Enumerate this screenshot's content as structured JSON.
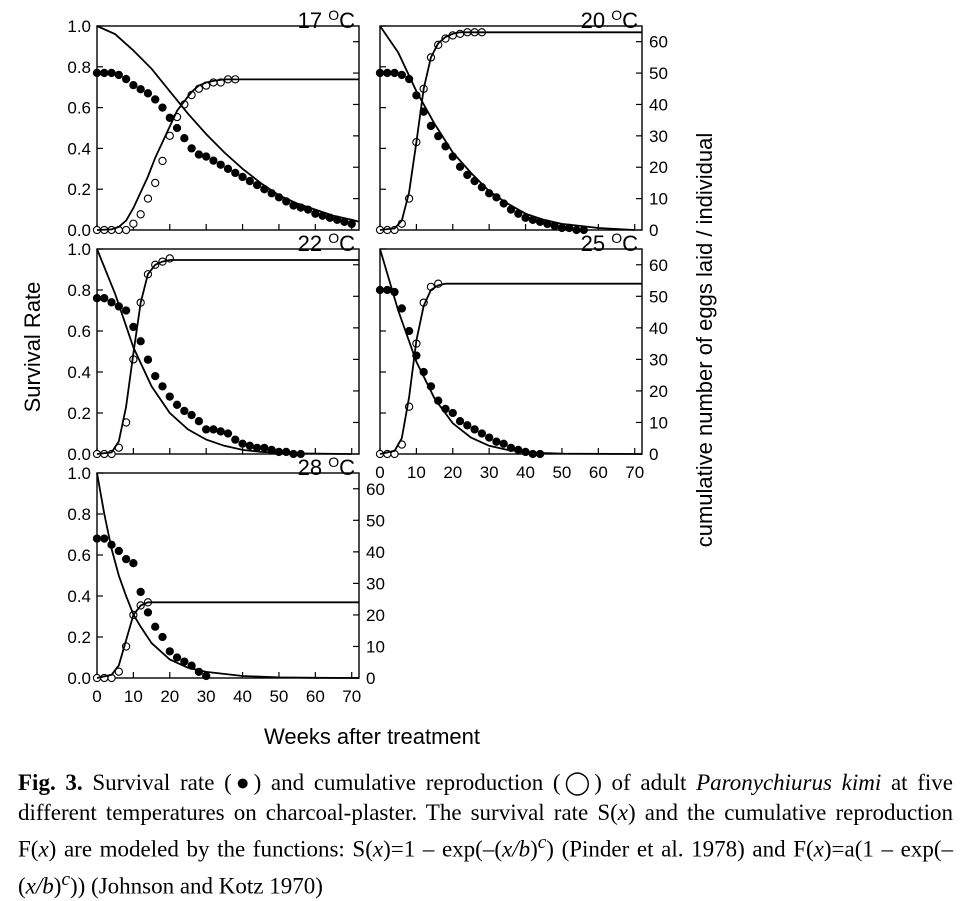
{
  "figure": {
    "shared_x_label": "Weeks after treatment",
    "left_y_label": "Survival Rate",
    "right_y_label": "cumulative number of eggs laid / individual"
  },
  "caption": {
    "label": "Fig. 3.",
    "parts": [
      "Survival rate (",
      "●",
      ") and cumulative reproduction (",
      "◯",
      ") of adult ",
      "Paronychiurus kimi",
      " at five different temperatures on charcoal-plaster. The survival rate S(",
      "x",
      ") and the cumulative reproduction F(",
      "x",
      ") are modeled by the functions: S(",
      "x",
      ")=1 – exp(–(",
      "x/b",
      ")",
      "c",
      ") (Pinder et al. 1978) and F(",
      "x",
      ")=a(1 – exp(–(",
      "x/b",
      ")",
      "c",
      ")) (Johnson and Kotz 1970)"
    ]
  },
  "chart_data": [
    {
      "type": "scatter",
      "title": "17 °C",
      "title_parts": [
        "17 ",
        "O",
        "C"
      ],
      "x_ticks": [],
      "y_left_ticks": [
        "0.0",
        "0.2",
        "0.4",
        "0.6",
        "0.8",
        "1.0"
      ],
      "y_right_ticks": [],
      "xlim": [
        0,
        72
      ],
      "ylim_left": [
        0,
        1
      ],
      "ylim_right": [
        0,
        65
      ],
      "series": [
        {
          "name": "Survival rate",
          "marker": "filled-circle",
          "axis": "left",
          "x": [
            0,
            2,
            4,
            6,
            8,
            10,
            12,
            14,
            16,
            18,
            20,
            22,
            24,
            26,
            28,
            30,
            32,
            34,
            36,
            38,
            40,
            42,
            44,
            46,
            48,
            50,
            52,
            54,
            56,
            58,
            60,
            62,
            64,
            66,
            68,
            70
          ],
          "y": [
            0.77,
            0.77,
            0.77,
            0.76,
            0.74,
            0.71,
            0.69,
            0.67,
            0.64,
            0.6,
            0.55,
            0.5,
            0.45,
            0.4,
            0.37,
            0.36,
            0.34,
            0.32,
            0.3,
            0.28,
            0.26,
            0.24,
            0.22,
            0.2,
            0.18,
            0.16,
            0.14,
            0.12,
            0.11,
            0.1,
            0.08,
            0.07,
            0.06,
            0.05,
            0.04,
            0.03
          ]
        },
        {
          "name": "Cumulative reproduction",
          "marker": "open-circle",
          "axis": "right",
          "x": [
            0,
            2,
            4,
            6,
            8,
            10,
            12,
            14,
            16,
            18,
            20,
            22,
            24,
            26,
            28,
            30,
            32,
            34,
            36,
            38
          ],
          "y": [
            0,
            0,
            0,
            0,
            0,
            2,
            5,
            10,
            15,
            22,
            30,
            36,
            40,
            43,
            45,
            46,
            47,
            47,
            48,
            48
          ]
        },
        {
          "name": "Survival model",
          "style": "line",
          "axis": "left",
          "x": [
            0,
            5,
            10,
            15,
            20,
            25,
            30,
            35,
            40,
            45,
            50,
            55,
            60,
            65,
            70,
            72
          ],
          "y": [
            1.0,
            0.96,
            0.88,
            0.79,
            0.68,
            0.57,
            0.47,
            0.38,
            0.3,
            0.23,
            0.17,
            0.13,
            0.1,
            0.07,
            0.05,
            0.04
          ]
        },
        {
          "name": "Reproduction model",
          "style": "line",
          "axis": "right",
          "x": [
            0,
            4,
            6,
            8,
            10,
            12,
            14,
            16,
            18,
            20,
            22,
            24,
            26,
            28,
            30,
            32,
            35,
            40,
            72
          ],
          "y": [
            0,
            0.2,
            1,
            3,
            7,
            12,
            17,
            23,
            28,
            33,
            38,
            41,
            44,
            46,
            47,
            47.5,
            48,
            48,
            48
          ]
        }
      ]
    },
    {
      "type": "scatter",
      "title": "20 °C",
      "title_parts": [
        "20 ",
        "O",
        "C"
      ],
      "x_ticks": [],
      "y_left_ticks": [],
      "y_right_ticks": [
        "0",
        "10",
        "20",
        "30",
        "40",
        "50",
        "60"
      ],
      "xlim": [
        0,
        72
      ],
      "ylim_left": [
        0,
        1
      ],
      "ylim_right": [
        0,
        65
      ],
      "series": [
        {
          "name": "Survival rate",
          "marker": "filled-circle",
          "axis": "left",
          "x": [
            0,
            2,
            4,
            6,
            8,
            10,
            12,
            14,
            16,
            18,
            20,
            22,
            24,
            26,
            28,
            30,
            32,
            34,
            36,
            38,
            40,
            42,
            44,
            46,
            48,
            50,
            52,
            54,
            56
          ],
          "y": [
            0.77,
            0.77,
            0.77,
            0.76,
            0.74,
            0.66,
            0.58,
            0.51,
            0.46,
            0.41,
            0.36,
            0.31,
            0.27,
            0.24,
            0.21,
            0.18,
            0.16,
            0.13,
            0.1,
            0.08,
            0.06,
            0.05,
            0.04,
            0.03,
            0.02,
            0.01,
            0.01,
            0.0,
            0.0
          ]
        },
        {
          "name": "Cumulative reproduction",
          "marker": "open-circle",
          "axis": "right",
          "x": [
            0,
            2,
            4,
            6,
            8,
            10,
            12,
            14,
            16,
            18,
            20,
            22,
            24,
            26,
            28
          ],
          "y": [
            0,
            0,
            0,
            2,
            10,
            28,
            45,
            55,
            59,
            61,
            62,
            62.5,
            63,
            63,
            63
          ]
        },
        {
          "name": "Survival model",
          "style": "line",
          "axis": "left",
          "x": [
            0,
            5,
            10,
            15,
            20,
            25,
            30,
            35,
            40,
            45,
            50,
            55,
            60,
            65,
            70
          ],
          "y": [
            1.0,
            0.87,
            0.68,
            0.52,
            0.38,
            0.28,
            0.19,
            0.13,
            0.08,
            0.05,
            0.03,
            0.02,
            0.01,
            0.005,
            0.0
          ]
        },
        {
          "name": "Reproduction model",
          "style": "line",
          "axis": "right",
          "x": [
            0,
            4,
            6,
            8,
            10,
            12,
            14,
            16,
            18,
            20,
            22,
            25,
            30,
            72
          ],
          "y": [
            0,
            0.5,
            3,
            12,
            28,
            45,
            55,
            59.5,
            61.5,
            62.5,
            63,
            63,
            63,
            63
          ]
        }
      ]
    },
    {
      "type": "scatter",
      "title": "22 °C",
      "title_parts": [
        "22 ",
        "O",
        "C"
      ],
      "x_ticks": [],
      "y_left_ticks": [
        "0.0",
        "0.2",
        "0.4",
        "0.6",
        "0.8",
        "1.0"
      ],
      "y_right_ticks": [],
      "xlim": [
        0,
        72
      ],
      "ylim_left": [
        0,
        1
      ],
      "ylim_right": [
        0,
        65
      ],
      "series": [
        {
          "name": "Survival rate",
          "marker": "filled-circle",
          "axis": "left",
          "x": [
            0,
            2,
            4,
            6,
            8,
            10,
            12,
            14,
            16,
            18,
            20,
            22,
            24,
            26,
            28,
            30,
            32,
            34,
            36,
            38,
            40,
            42,
            44,
            46,
            48,
            50,
            52,
            54,
            56
          ],
          "y": [
            0.76,
            0.76,
            0.74,
            0.72,
            0.7,
            0.62,
            0.55,
            0.46,
            0.38,
            0.33,
            0.28,
            0.24,
            0.21,
            0.19,
            0.16,
            0.12,
            0.12,
            0.11,
            0.1,
            0.07,
            0.05,
            0.04,
            0.03,
            0.03,
            0.02,
            0.01,
            0.01,
            0.0,
            0.0
          ]
        },
        {
          "name": "Cumulative reproduction",
          "marker": "open-circle",
          "axis": "right",
          "x": [
            0,
            2,
            4,
            6,
            8,
            10,
            12,
            14,
            16,
            18,
            20
          ],
          "y": [
            0,
            0,
            0,
            2,
            10,
            30,
            48,
            57,
            60,
            61,
            62
          ]
        },
        {
          "name": "Survival model",
          "style": "line",
          "axis": "left",
          "x": [
            0,
            5,
            10,
            15,
            20,
            25,
            30,
            35,
            40,
            45,
            50,
            55,
            60,
            70
          ],
          "y": [
            1.0,
            0.78,
            0.52,
            0.33,
            0.2,
            0.12,
            0.07,
            0.04,
            0.02,
            0.01,
            0.006,
            0.003,
            0.002,
            0.0
          ]
        },
        {
          "name": "Reproduction model",
          "style": "line",
          "axis": "right",
          "x": [
            0,
            4,
            6,
            8,
            10,
            12,
            14,
            16,
            18,
            20,
            24,
            72
          ],
          "y": [
            0,
            0.5,
            4,
            15,
            32,
            48,
            57,
            60,
            61,
            61.5,
            61.5,
            61.5
          ]
        }
      ]
    },
    {
      "type": "scatter",
      "title": "25 °C",
      "title_parts": [
        "25 ",
        "O",
        "C"
      ],
      "x_ticks": [
        "0",
        "10",
        "20",
        "30",
        "40",
        "50",
        "60",
        "70"
      ],
      "y_left_ticks": [],
      "y_right_ticks": [
        "0",
        "10",
        "20",
        "30",
        "40",
        "50",
        "60"
      ],
      "xlim": [
        0,
        72
      ],
      "ylim_left": [
        0,
        1
      ],
      "ylim_right": [
        0,
        65
      ],
      "series": [
        {
          "name": "Survival rate",
          "marker": "filled-circle",
          "axis": "left",
          "x": [
            0,
            2,
            4,
            6,
            8,
            10,
            12,
            14,
            16,
            18,
            20,
            22,
            24,
            26,
            28,
            30,
            32,
            34,
            36,
            38,
            40,
            42,
            44
          ],
          "y": [
            0.8,
            0.8,
            0.79,
            0.71,
            0.6,
            0.48,
            0.4,
            0.33,
            0.26,
            0.22,
            0.2,
            0.16,
            0.14,
            0.12,
            0.1,
            0.08,
            0.06,
            0.05,
            0.03,
            0.02,
            0.01,
            0.0,
            0.0
          ]
        },
        {
          "name": "Cumulative reproduction",
          "marker": "open-circle",
          "axis": "right",
          "x": [
            0,
            2,
            4,
            6,
            8,
            10,
            12,
            14,
            16
          ],
          "y": [
            0,
            0,
            0,
            3,
            15,
            35,
            48,
            53,
            54
          ]
        },
        {
          "name": "Survival model",
          "style": "line",
          "axis": "left",
          "x": [
            0,
            5,
            10,
            15,
            20,
            25,
            30,
            35,
            40,
            45,
            50,
            72
          ],
          "y": [
            1.0,
            0.7,
            0.45,
            0.27,
            0.15,
            0.08,
            0.04,
            0.02,
            0.01,
            0.005,
            0.002,
            0.0
          ]
        },
        {
          "name": "Reproduction model",
          "style": "line",
          "axis": "right",
          "x": [
            0,
            4,
            6,
            8,
            10,
            12,
            14,
            16,
            18,
            72
          ],
          "y": [
            0,
            1,
            5,
            18,
            36,
            47,
            52,
            53.5,
            54,
            54
          ]
        }
      ]
    },
    {
      "type": "scatter",
      "title": "28 °C",
      "title_parts": [
        "28 ",
        "O",
        "C"
      ],
      "x_ticks": [
        "0",
        "10",
        "20",
        "30",
        "40",
        "50",
        "60",
        "70"
      ],
      "y_left_ticks": [
        "0.0",
        "0.2",
        "0.4",
        "0.6",
        "0.8",
        "1.0"
      ],
      "y_right_ticks": [
        "0",
        "10",
        "20",
        "30",
        "40",
        "50",
        "60"
      ],
      "xlim": [
        0,
        72
      ],
      "ylim_left": [
        0,
        1
      ],
      "ylim_right": [
        0,
        65
      ],
      "series": [
        {
          "name": "Survival rate",
          "marker": "filled-circle",
          "axis": "left",
          "x": [
            0,
            2,
            4,
            6,
            8,
            10,
            12,
            14,
            16,
            18,
            20,
            22,
            24,
            26,
            28,
            30
          ],
          "y": [
            0.68,
            0.68,
            0.65,
            0.62,
            0.58,
            0.56,
            0.42,
            0.32,
            0.25,
            0.2,
            0.13,
            0.1,
            0.08,
            0.06,
            0.03,
            0.01
          ]
        },
        {
          "name": "Cumulative reproduction",
          "marker": "open-circle",
          "axis": "right",
          "x": [
            0,
            2,
            4,
            6,
            8,
            10,
            12,
            14
          ],
          "y": [
            0,
            0,
            0,
            2,
            10,
            20,
            23,
            24
          ]
        },
        {
          "name": "Survival model",
          "style": "line",
          "axis": "left",
          "x": [
            0,
            2,
            4,
            6,
            8,
            10,
            12,
            15,
            20,
            25,
            30,
            40,
            50,
            60,
            72
          ],
          "y": [
            1.0,
            0.8,
            0.63,
            0.5,
            0.4,
            0.31,
            0.25,
            0.17,
            0.09,
            0.05,
            0.03,
            0.01,
            0.003,
            0.001,
            0.0
          ]
        },
        {
          "name": "Reproduction model",
          "style": "line",
          "axis": "right",
          "x": [
            0,
            4,
            6,
            8,
            10,
            12,
            14,
            72
          ],
          "y": [
            0,
            1,
            4,
            12,
            20,
            23,
            24,
            24
          ]
        }
      ]
    }
  ]
}
